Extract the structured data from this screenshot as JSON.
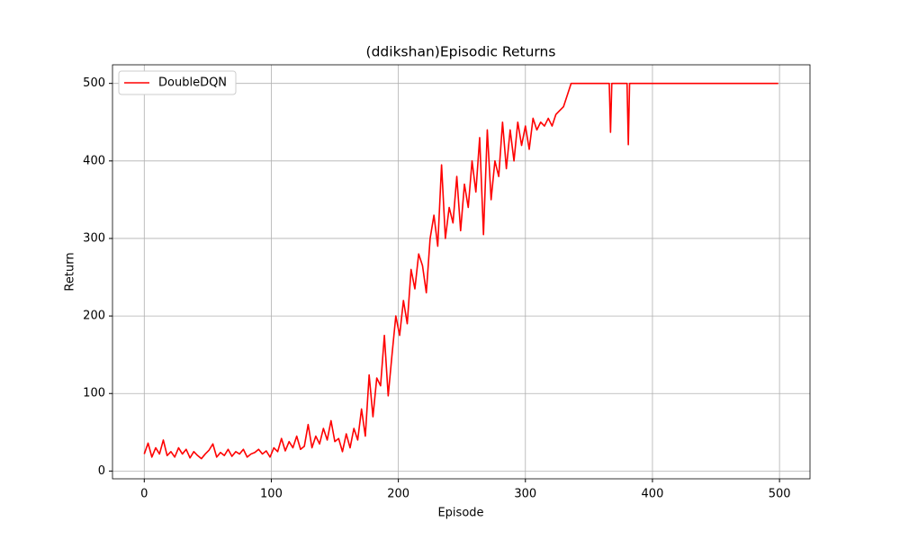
{
  "chart_data": {
    "type": "line",
    "title": "(ddikshan)Episodic Returns",
    "xlabel": "Episode",
    "ylabel": "Return",
    "x": [
      0,
      3,
      6,
      9,
      12,
      15,
      18,
      21,
      24,
      27,
      30,
      33,
      36,
      39,
      42,
      45,
      48,
      51,
      54,
      57,
      60,
      63,
      66,
      69,
      72,
      75,
      78,
      81,
      84,
      87,
      90,
      93,
      96,
      99,
      102,
      105,
      108,
      111,
      114,
      117,
      120,
      123,
      126,
      129,
      132,
      135,
      138,
      141,
      144,
      147,
      150,
      153,
      156,
      159,
      162,
      165,
      168,
      171,
      174,
      177,
      180,
      183,
      186,
      189,
      192,
      195,
      198,
      201,
      204,
      207,
      210,
      213,
      216,
      219,
      222,
      225,
      228,
      231,
      234,
      237,
      240,
      243,
      246,
      249,
      252,
      255,
      258,
      261,
      264,
      267,
      270,
      273,
      276,
      279,
      282,
      285,
      288,
      291,
      294,
      297,
      300,
      303,
      306,
      309,
      312,
      315,
      318,
      321,
      324,
      327,
      330,
      333,
      336,
      366,
      367,
      368,
      380,
      381,
      382,
      499
    ],
    "series": [
      {
        "name": "DoubleDQN",
        "color": "#ff0000",
        "values": [
          22,
          36,
          18,
          30,
          22,
          40,
          20,
          25,
          18,
          30,
          22,
          28,
          17,
          25,
          20,
          16,
          22,
          27,
          35,
          18,
          24,
          20,
          28,
          19,
          25,
          22,
          28,
          18,
          22,
          24,
          28,
          22,
          26,
          18,
          30,
          25,
          42,
          26,
          38,
          30,
          45,
          28,
          32,
          60,
          30,
          45,
          35,
          55,
          40,
          65,
          38,
          42,
          25,
          48,
          30,
          55,
          40,
          80,
          45,
          124,
          70,
          120,
          110,
          175,
          97,
          150,
          200,
          175,
          220,
          190,
          260,
          235,
          280,
          265,
          230,
          300,
          330,
          290,
          395,
          300,
          340,
          320,
          380,
          310,
          370,
          340,
          400,
          360,
          430,
          305,
          440,
          350,
          400,
          380,
          450,
          390,
          440,
          400,
          450,
          420,
          445,
          415,
          455,
          440,
          450,
          445,
          455,
          445,
          460,
          465,
          470,
          485,
          500,
          500,
          437,
          500,
          500,
          421,
          500,
          500
        ]
      }
    ],
    "xlim": [
      -25,
      524
    ],
    "ylim": [
      -10,
      524
    ],
    "xticks": [
      0,
      100,
      200,
      300,
      400,
      500
    ],
    "yticks": [
      0,
      100,
      200,
      300,
      400,
      500
    ],
    "grid": true,
    "legend": "upper-left"
  }
}
